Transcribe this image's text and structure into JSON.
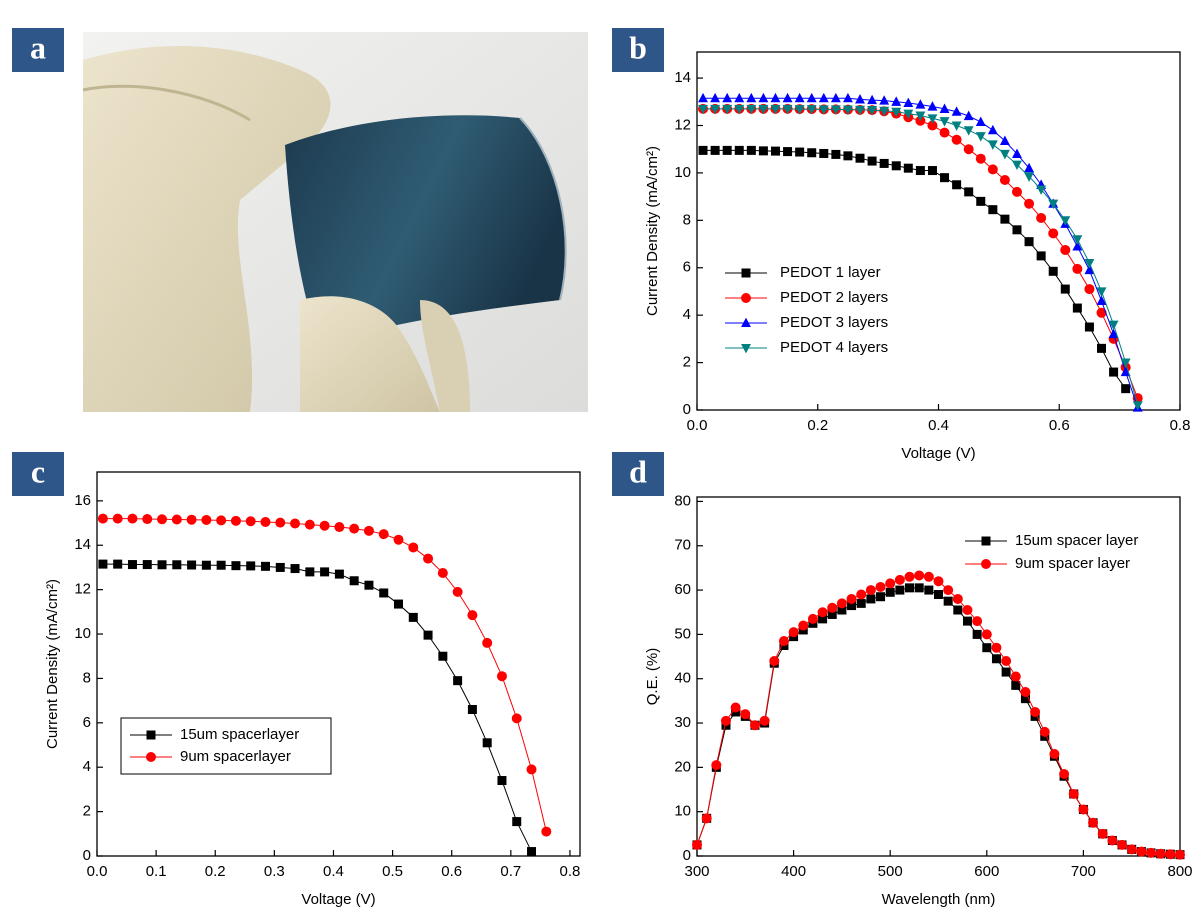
{
  "panels": [
    "a",
    "b",
    "c",
    "d"
  ],
  "chart_data": [
    {
      "type": "line",
      "x_label": "Voltage (V)",
      "y_label": "Current Density (mA/cm²)",
      "xlim": [
        0,
        0.8
      ],
      "ylim": [
        0,
        15.1
      ],
      "xticks": [
        {
          "value": 0,
          "label": "0.0"
        },
        0.2,
        0.4,
        0.6,
        0.8
      ],
      "yticks": [
        0,
        2,
        4,
        6,
        8,
        10,
        12,
        14
      ],
      "legend": "lower left",
      "x": [
        0.01,
        0.03,
        0.05,
        0.07,
        0.09,
        0.11,
        0.13,
        0.15,
        0.17,
        0.19,
        0.21,
        0.23,
        0.25,
        0.27,
        0.29,
        0.31,
        0.33,
        0.35,
        0.37,
        0.39,
        0.41,
        0.43,
        0.45,
        0.47,
        0.49,
        0.51,
        0.53,
        0.55,
        0.57,
        0.59,
        0.61,
        0.63,
        0.65,
        0.67,
        0.69,
        0.71,
        0.73
      ],
      "series": [
        {
          "name": "PEDOT 1 layer",
          "color": "#000000",
          "marker": "square",
          "values": [
            10.95,
            10.95,
            10.95,
            10.95,
            10.95,
            10.93,
            10.92,
            10.9,
            10.88,
            10.85,
            10.82,
            10.78,
            10.72,
            10.62,
            10.5,
            10.4,
            10.3,
            10.2,
            10.1,
            10.1,
            9.8,
            9.5,
            9.2,
            8.8,
            8.45,
            8.05,
            7.6,
            7.1,
            6.5,
            5.85,
            5.1,
            4.3,
            3.5,
            2.6,
            1.6,
            0.9,
            null
          ]
        },
        {
          "name": "PEDOT 2 layers",
          "color": "#ff0000",
          "marker": "circle",
          "values": [
            12.7,
            12.7,
            12.7,
            12.7,
            12.7,
            12.7,
            12.7,
            12.7,
            12.69,
            12.69,
            12.68,
            12.68,
            12.67,
            12.66,
            12.65,
            12.6,
            12.5,
            12.35,
            12.2,
            12.0,
            11.7,
            11.4,
            11.0,
            10.6,
            10.15,
            9.7,
            9.2,
            8.7,
            8.1,
            7.45,
            6.75,
            5.95,
            5.1,
            4.1,
            3.0,
            1.8,
            0.5
          ]
        },
        {
          "name": "PEDOT 3 layers",
          "color": "#0000ff",
          "marker": "triangle-up",
          "values": [
            13.15,
            13.15,
            13.15,
            13.15,
            13.15,
            13.15,
            13.15,
            13.15,
            13.15,
            13.15,
            13.15,
            13.15,
            13.15,
            13.1,
            13.07,
            13.05,
            13.0,
            12.95,
            12.88,
            12.8,
            12.7,
            12.58,
            12.4,
            12.15,
            11.8,
            11.35,
            10.8,
            10.2,
            9.5,
            8.7,
            7.85,
            6.9,
            5.9,
            4.6,
            3.2,
            1.6,
            0.1
          ]
        },
        {
          "name": "PEDOT 4 layers",
          "color": "#008080",
          "marker": "triangle-down",
          "values": [
            12.7,
            12.7,
            12.7,
            12.7,
            12.7,
            12.7,
            12.7,
            12.7,
            12.69,
            12.69,
            12.68,
            12.68,
            12.67,
            12.66,
            12.65,
            12.62,
            12.58,
            12.5,
            12.42,
            12.3,
            12.18,
            12.0,
            11.8,
            11.55,
            11.2,
            10.8,
            10.35,
            9.85,
            9.3,
            8.7,
            8.0,
            7.2,
            6.2,
            5.0,
            3.6,
            2.0,
            0.2
          ]
        }
      ]
    },
    {
      "type": "line",
      "x_label": "Voltage (V)",
      "y_label": "Current Density (mA/cm²)",
      "xlim": [
        0,
        0.817
      ],
      "ylim": [
        0,
        17.3
      ],
      "xticks": [
        {
          "value": 0,
          "label": "0.0"
        },
        0.1,
        0.2,
        0.3,
        0.4,
        0.5,
        0.6,
        0.7,
        0.8
      ],
      "yticks": [
        0,
        2,
        4,
        6,
        8,
        10,
        12,
        14,
        16
      ],
      "legend": "lower left",
      "legend_frame": true,
      "x": [
        0.01,
        0.035,
        0.06,
        0.085,
        0.11,
        0.135,
        0.16,
        0.185,
        0.21,
        0.235,
        0.26,
        0.285,
        0.31,
        0.335,
        0.36,
        0.385,
        0.41,
        0.435,
        0.46,
        0.485,
        0.51,
        0.535,
        0.56,
        0.585,
        0.61,
        0.635,
        0.66,
        0.685,
        0.71,
        0.735,
        0.76
      ],
      "series": [
        {
          "name": "15um spacerlayer",
          "color": "#000000",
          "marker": "square",
          "values": [
            13.15,
            13.15,
            13.13,
            13.13,
            13.12,
            13.12,
            13.11,
            13.1,
            13.1,
            13.08,
            13.07,
            13.05,
            13.0,
            12.95,
            12.8,
            12.8,
            12.7,
            12.4,
            12.2,
            11.85,
            11.35,
            10.75,
            9.95,
            9.0,
            7.9,
            6.6,
            5.1,
            3.4,
            1.55,
            0.2,
            null
          ]
        },
        {
          "name": "9um spacerlayer",
          "color": "#ff0000",
          "marker": "circle",
          "values": [
            15.2,
            15.2,
            15.2,
            15.18,
            15.17,
            15.16,
            15.15,
            15.14,
            15.12,
            15.1,
            15.08,
            15.05,
            15.02,
            14.98,
            14.93,
            14.88,
            14.82,
            14.75,
            14.65,
            14.5,
            14.25,
            13.9,
            13.4,
            12.75,
            11.9,
            10.85,
            9.6,
            8.1,
            6.2,
            3.9,
            1.1
          ]
        }
      ]
    },
    {
      "type": "line",
      "x_label": "Wavelength (nm)",
      "y_label": "Q.E. (%)",
      "xlim": [
        300,
        800
      ],
      "ylim": [
        0,
        81
      ],
      "xticks": [
        300,
        400,
        500,
        600,
        700,
        800
      ],
      "yticks": [
        0,
        10,
        20,
        30,
        40,
        50,
        60,
        70,
        80
      ],
      "legend": "upper right",
      "x": [
        300,
        310,
        320,
        330,
        340,
        350,
        360,
        370,
        380,
        390,
        400,
        410,
        420,
        430,
        440,
        450,
        460,
        470,
        480,
        490,
        500,
        510,
        520,
        530,
        540,
        550,
        560,
        570,
        580,
        590,
        600,
        610,
        620,
        630,
        640,
        650,
        660,
        670,
        680,
        690,
        700,
        710,
        720,
        730,
        740,
        750,
        760,
        770,
        780,
        790,
        800
      ],
      "series": [
        {
          "name": "15um spacer layer",
          "color": "#000000",
          "marker": "square",
          "values": [
            2.5,
            8.5,
            20,
            29.5,
            32.5,
            31.5,
            29.5,
            30,
            43.5,
            47.5,
            49.5,
            51,
            52.5,
            53.5,
            54.5,
            55.5,
            56.5,
            57,
            58,
            58.5,
            59.5,
            60,
            60.5,
            60.5,
            60,
            59,
            57.5,
            55.5,
            53,
            50,
            47,
            44.5,
            41.5,
            38.5,
            35.5,
            31.5,
            27,
            22.5,
            18,
            14,
            10.5,
            7.5,
            5,
            3.5,
            2.5,
            1.5,
            1,
            0.7,
            0.5,
            0.4,
            0.3
          ]
        },
        {
          "name": "9um spacer layer",
          "color": "#ff0000",
          "marker": "circle",
          "values": [
            2.5,
            8.5,
            20.5,
            30.5,
            33.5,
            32,
            29.5,
            30.5,
            44,
            48.5,
            50.5,
            52,
            53.5,
            55,
            56,
            57,
            58,
            59,
            60,
            60.7,
            61.5,
            62.3,
            63,
            63.3,
            63,
            62,
            60,
            58,
            55.5,
            53,
            50,
            47,
            44,
            40.5,
            37,
            32.5,
            28,
            23,
            18.5,
            14,
            10.5,
            7.5,
            5,
            3.5,
            2.5,
            1.5,
            1,
            0.7,
            0.5,
            0.4,
            0.3
          ]
        }
      ]
    }
  ]
}
